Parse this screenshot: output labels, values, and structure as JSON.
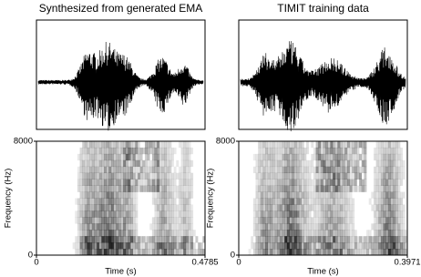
{
  "chart_data": [
    {
      "type": "spectrogram",
      "title": "Synthesized from generated EMA",
      "xlabel": "Time (s)",
      "ylabel": "Frequency (Hz)",
      "xlim": [
        0,
        0.4785
      ],
      "xticks": [
        0,
        0.4785
      ],
      "ylim": [
        0,
        8000
      ],
      "yticks": [
        0,
        8000
      ]
    },
    {
      "type": "spectrogram",
      "title": "TIMIT training data",
      "xlabel": "Time (s)",
      "ylabel": "Frequency (Hz)",
      "xlim": [
        0,
        0.3971
      ],
      "xticks": [
        0,
        0.3971
      ],
      "ylim": [
        0,
        8000
      ],
      "yticks": [
        0,
        8000
      ]
    }
  ]
}
